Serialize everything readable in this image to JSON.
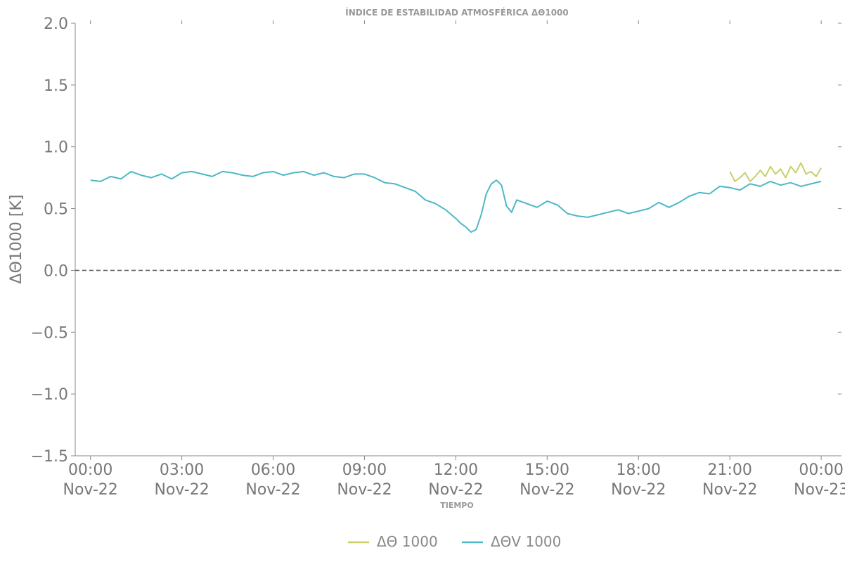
{
  "chart_data": {
    "type": "line",
    "title": "ÍNDICE DE ESTABILIDAD ATMOSFÉRICA ΔΘ1000",
    "xlabel": "TIEMPO",
    "ylabel": "ΔΘ1000 [K]",
    "ylim": [
      -1.5,
      2.0
    ],
    "yticks": [
      "2.0",
      "1.5",
      "1.0",
      "0.5",
      "0.0",
      "−0.5",
      "−1.0",
      "−1.5"
    ],
    "xlim": [
      "2022-11-21T23:30",
      "2022-11-23T00:40"
    ],
    "xticks": [
      {
        "t": "2022-11-22T00:00",
        "time": "00:00",
        "date": "Nov-22"
      },
      {
        "t": "2022-11-22T03:00",
        "time": "03:00",
        "date": "Nov-22"
      },
      {
        "t": "2022-11-22T06:00",
        "time": "06:00",
        "date": "Nov-22"
      },
      {
        "t": "2022-11-22T09:00",
        "time": "09:00",
        "date": "Nov-22"
      },
      {
        "t": "2022-11-22T12:00",
        "time": "12:00",
        "date": "Nov-22"
      },
      {
        "t": "2022-11-22T15:00",
        "time": "15:00",
        "date": "Nov-22"
      },
      {
        "t": "2022-11-22T18:00",
        "time": "18:00",
        "date": "Nov-22"
      },
      {
        "t": "2022-11-22T21:00",
        "time": "21:00",
        "date": "Nov-22"
      },
      {
        "t": "2022-11-23T00:00",
        "time": "00:00",
        "date": "Nov-23"
      }
    ],
    "reference_line": {
      "y": 0.0,
      "style": "dashed"
    },
    "grid": false,
    "legend_position": "bottom-center",
    "series": [
      {
        "name": "ΔΘ 1000",
        "color": "#c8cf6a",
        "points": [
          [
            "2022-11-22T21:00",
            0.8
          ],
          [
            "2022-11-22T21:10",
            0.72
          ],
          [
            "2022-11-22T21:20",
            0.75
          ],
          [
            "2022-11-22T21:30",
            0.79
          ],
          [
            "2022-11-22T21:40",
            0.72
          ],
          [
            "2022-11-22T21:50",
            0.76
          ],
          [
            "2022-11-22T22:00",
            0.81
          ],
          [
            "2022-11-22T22:10",
            0.76
          ],
          [
            "2022-11-22T22:20",
            0.84
          ],
          [
            "2022-11-22T22:30",
            0.78
          ],
          [
            "2022-11-22T22:40",
            0.82
          ],
          [
            "2022-11-22T22:50",
            0.75
          ],
          [
            "2022-11-22T23:00",
            0.84
          ],
          [
            "2022-11-22T23:10",
            0.79
          ],
          [
            "2022-11-22T23:20",
            0.87
          ],
          [
            "2022-11-22T23:30",
            0.78
          ],
          [
            "2022-11-22T23:40",
            0.8
          ],
          [
            "2022-11-22T23:50",
            0.76
          ],
          [
            "2022-11-23T00:00",
            0.83
          ]
        ]
      },
      {
        "name": "ΔΘV 1000",
        "color": "#4db8c6",
        "points": [
          [
            "2022-11-22T00:00",
            0.73
          ],
          [
            "2022-11-22T00:20",
            0.72
          ],
          [
            "2022-11-22T00:40",
            0.76
          ],
          [
            "2022-11-22T01:00",
            0.74
          ],
          [
            "2022-11-22T01:20",
            0.8
          ],
          [
            "2022-11-22T01:40",
            0.77
          ],
          [
            "2022-11-22T02:00",
            0.75
          ],
          [
            "2022-11-22T02:20",
            0.78
          ],
          [
            "2022-11-22T02:40",
            0.74
          ],
          [
            "2022-11-22T03:00",
            0.79
          ],
          [
            "2022-11-22T03:20",
            0.8
          ],
          [
            "2022-11-22T03:40",
            0.78
          ],
          [
            "2022-11-22T04:00",
            0.76
          ],
          [
            "2022-11-22T04:20",
            0.8
          ],
          [
            "2022-11-22T04:40",
            0.79
          ],
          [
            "2022-11-22T05:00",
            0.77
          ],
          [
            "2022-11-22T05:20",
            0.76
          ],
          [
            "2022-11-22T05:40",
            0.79
          ],
          [
            "2022-11-22T06:00",
            0.8
          ],
          [
            "2022-11-22T06:20",
            0.77
          ],
          [
            "2022-11-22T06:40",
            0.79
          ],
          [
            "2022-11-22T07:00",
            0.8
          ],
          [
            "2022-11-22T07:20",
            0.77
          ],
          [
            "2022-11-22T07:40",
            0.79
          ],
          [
            "2022-11-22T08:00",
            0.76
          ],
          [
            "2022-11-22T08:20",
            0.75
          ],
          [
            "2022-11-22T08:40",
            0.78
          ],
          [
            "2022-11-22T09:00",
            0.78
          ],
          [
            "2022-11-22T09:20",
            0.75
          ],
          [
            "2022-11-22T09:40",
            0.71
          ],
          [
            "2022-11-22T10:00",
            0.7
          ],
          [
            "2022-11-22T10:20",
            0.67
          ],
          [
            "2022-11-22T10:40",
            0.64
          ],
          [
            "2022-11-22T11:00",
            0.57
          ],
          [
            "2022-11-22T11:20",
            0.54
          ],
          [
            "2022-11-22T11:40",
            0.49
          ],
          [
            "2022-11-22T12:00",
            0.42
          ],
          [
            "2022-11-22T12:10",
            0.38
          ],
          [
            "2022-11-22T12:20",
            0.35
          ],
          [
            "2022-11-22T12:30",
            0.31
          ],
          [
            "2022-11-22T12:40",
            0.33
          ],
          [
            "2022-11-22T12:50",
            0.45
          ],
          [
            "2022-11-22T13:00",
            0.62
          ],
          [
            "2022-11-22T13:10",
            0.7
          ],
          [
            "2022-11-22T13:20",
            0.73
          ],
          [
            "2022-11-22T13:30",
            0.69
          ],
          [
            "2022-11-22T13:40",
            0.52
          ],
          [
            "2022-11-22T13:50",
            0.47
          ],
          [
            "2022-11-22T14:00",
            0.57
          ],
          [
            "2022-11-22T14:20",
            0.54
          ],
          [
            "2022-11-22T14:40",
            0.51
          ],
          [
            "2022-11-22T15:00",
            0.56
          ],
          [
            "2022-11-22T15:20",
            0.53
          ],
          [
            "2022-11-22T15:40",
            0.46
          ],
          [
            "2022-11-22T16:00",
            0.44
          ],
          [
            "2022-11-22T16:20",
            0.43
          ],
          [
            "2022-11-22T16:40",
            0.45
          ],
          [
            "2022-11-22T17:00",
            0.47
          ],
          [
            "2022-11-22T17:20",
            0.49
          ],
          [
            "2022-11-22T17:40",
            0.46
          ],
          [
            "2022-11-22T18:00",
            0.48
          ],
          [
            "2022-11-22T18:20",
            0.5
          ],
          [
            "2022-11-22T18:40",
            0.55
          ],
          [
            "2022-11-22T19:00",
            0.51
          ],
          [
            "2022-11-22T19:20",
            0.55
          ],
          [
            "2022-11-22T19:40",
            0.6
          ],
          [
            "2022-11-22T20:00",
            0.63
          ],
          [
            "2022-11-22T20:20",
            0.62
          ],
          [
            "2022-11-22T20:40",
            0.68
          ],
          [
            "2022-11-22T21:00",
            0.67
          ],
          [
            "2022-11-22T21:20",
            0.65
          ],
          [
            "2022-11-22T21:40",
            0.7
          ],
          [
            "2022-11-22T22:00",
            0.68
          ],
          [
            "2022-11-22T22:20",
            0.72
          ],
          [
            "2022-11-22T22:40",
            0.69
          ],
          [
            "2022-11-22T23:00",
            0.71
          ],
          [
            "2022-11-22T23:20",
            0.68
          ],
          [
            "2022-11-22T23:40",
            0.7
          ],
          [
            "2022-11-23T00:00",
            0.72
          ]
        ]
      }
    ]
  }
}
